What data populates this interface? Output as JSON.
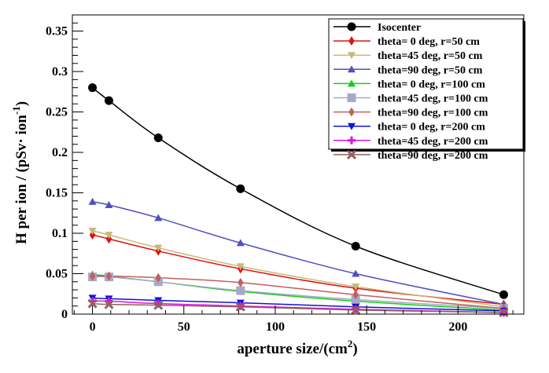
{
  "chart_data": {
    "type": "line",
    "xlabel": "aperture size/(cm",
    "xlabel_sup": "2",
    "xlabel_tail": ")",
    "ylabel": "H per ion / (pSv· ion",
    "ylabel_sup": "-1",
    "ylabel_tail": ")",
    "xlim": [
      -11,
      236
    ],
    "ylim": [
      0,
      0.37
    ],
    "xticks": [
      0,
      50,
      100,
      150,
      200
    ],
    "xtick_labels": [
      "0",
      "50",
      "100",
      "150",
      "200"
    ],
    "yticks": [
      0,
      0.05,
      0.1,
      0.15,
      0.2,
      0.25,
      0.3,
      0.35
    ],
    "ytick_labels": [
      "0",
      "0.05",
      "0.1",
      "0.15",
      "0.2",
      "0.25",
      "0.3",
      "0.35"
    ],
    "grid": false,
    "legend_position": "top-right",
    "x": [
      0,
      9,
      36,
      81,
      144,
      225
    ],
    "series": [
      {
        "name": "Isocenter",
        "color": "#000000",
        "marker": "circle",
        "values": [
          0.28,
          0.264,
          0.218,
          0.155,
          0.084,
          0.024
        ]
      },
      {
        "name": "theta= 0 deg, r=50 cm",
        "color": "#e01010",
        "marker": "diamond",
        "values": [
          0.098,
          0.093,
          0.078,
          0.056,
          0.032,
          0.012
        ]
      },
      {
        "name": "theta=45 deg, r=50 cm",
        "color": "#c8b878",
        "marker": "tri-down",
        "values": [
          0.103,
          0.098,
          0.082,
          0.059,
          0.034,
          0.009
        ]
      },
      {
        "name": "theta=90 deg, r=50 cm",
        "color": "#5050c0",
        "marker": "tri-up",
        "values": [
          0.139,
          0.135,
          0.119,
          0.088,
          0.05,
          0.012
        ]
      },
      {
        "name": "theta= 0 deg, r=100 cm",
        "color": "#10d010",
        "marker": "tri-up",
        "values": [
          0.049,
          0.047,
          0.04,
          0.028,
          0.016,
          0.005
        ]
      },
      {
        "name": "theta=45 deg, r=100 cm",
        "color": "#a8a8c8",
        "marker": "square",
        "values": [
          0.046,
          0.046,
          0.04,
          0.029,
          0.018,
          0.007
        ]
      },
      {
        "name": "theta=90 deg, r=100 cm",
        "color": "#c06060",
        "marker": "diamond",
        "values": [
          0.047,
          0.047,
          0.045,
          0.039,
          0.024,
          0.007
        ]
      },
      {
        "name": "theta= 0 deg, r=200 cm",
        "color": "#1010e0",
        "marker": "tri-down",
        "values": [
          0.02,
          0.019,
          0.017,
          0.014,
          0.009,
          0.004
        ]
      },
      {
        "name": "theta=45 deg, r=200 cm",
        "color": "#e010e0",
        "marker": "plus",
        "values": [
          0.016,
          0.016,
          0.013,
          0.01,
          0.006,
          0.002
        ]
      },
      {
        "name": "theta=90 deg, r=200 cm",
        "color": "#906060",
        "marker": "x",
        "values": [
          0.013,
          0.012,
          0.011,
          0.009,
          0.005,
          0.002
        ]
      }
    ]
  }
}
